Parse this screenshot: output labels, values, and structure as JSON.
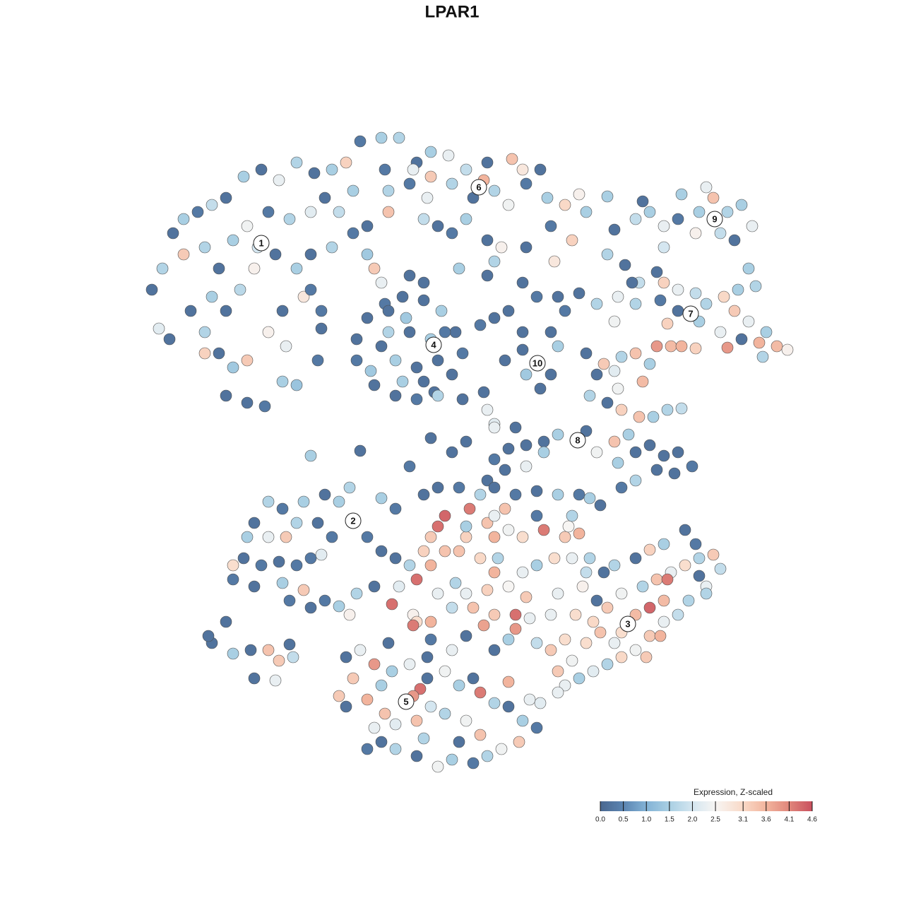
{
  "chart_data": {
    "type": "scatter",
    "title": "LPAR1",
    "x": [
      21.5,
      23,
      24.5,
      26,
      28,
      30,
      32,
      34.5,
      37,
      39.5,
      42,
      44.5,
      47,
      49,
      26,
      29,
      31,
      33,
      35,
      38,
      41,
      44,
      46,
      48,
      30,
      32,
      34,
      36,
      39,
      42,
      44,
      47,
      50,
      52,
      29,
      31,
      33,
      35,
      32,
      35,
      37.5,
      40,
      42,
      38,
      40,
      43,
      24,
      22.5,
      45.5,
      36.5,
      44,
      27,
      29,
      40.5,
      51,
      54,
      56.5,
      59,
      61,
      63.5,
      66,
      69,
      72.5,
      74,
      76.5,
      55,
      58,
      60.5,
      64,
      67,
      70,
      72,
      74.5,
      77.5,
      80,
      82,
      83,
      55,
      52,
      60,
      62,
      66,
      69,
      71,
      74.5,
      78,
      81,
      65,
      69,
      70,
      64,
      58.5,
      61,
      68.5,
      50,
      54.5,
      53,
      54,
      78.5,
      52,
      54.5,
      57,
      60,
      62.5,
      64.5,
      65.5,
      64,
      61.5,
      59,
      56,
      53,
      50.5,
      50.5,
      55,
      58,
      61,
      62,
      59,
      56,
      54,
      57,
      60,
      52.5,
      63,
      60,
      58,
      62,
      55,
      57.5,
      68,
      70,
      72,
      74,
      76,
      74,
      45.5,
      45,
      68.5,
      65.5,
      69,
      70,
      76,
      74,
      78,
      76.5,
      79,
      74.5,
      78,
      80,
      79,
      71.5,
      82,
      87,
      90,
      92,
      94,
      96,
      99,
      101,
      103,
      105,
      106.5,
      104,
      102,
      98.5,
      96.5,
      100,
      91,
      94,
      106,
      107,
      104.5,
      86,
      86,
      88.5,
      90.5,
      93,
      94,
      96,
      98.5,
      100,
      102.5,
      104,
      106,
      108.5,
      110,
      111.5,
      108,
      105,
      102,
      99,
      96,
      93.5,
      90,
      87.5,
      84.5,
      87,
      95,
      93,
      96.5,
      103,
      107.5,
      98.5,
      94.5,
      89.5,
      85.5,
      88,
      90,
      92,
      87,
      84.5,
      83.5,
      86,
      88,
      90.5,
      92.5,
      94.5,
      96.5,
      91,
      87.5,
      83,
      82,
      79,
      77,
      74.5,
      72,
      70,
      69,
      71.5,
      74.5,
      77,
      84.5,
      87,
      89,
      90,
      92,
      94,
      96,
      98,
      95.5,
      93,
      90,
      88,
      87.5,
      83,
      66,
      64,
      61,
      58,
      51,
      44,
      73,
      70,
      50,
      48,
      46,
      43,
      40,
      38,
      36,
      35,
      38,
      40.5,
      42,
      45,
      47,
      49.5,
      52,
      54,
      34.5,
      37,
      39.5,
      42,
      44,
      45.5,
      33,
      36,
      40,
      41,
      43,
      44,
      33,
      46,
      48,
      56,
      54,
      60,
      62,
      65,
      68,
      70,
      73,
      76,
      79,
      82,
      85,
      83.5,
      63,
      62,
      61,
      60,
      58,
      59,
      61,
      63,
      66,
      69,
      72,
      74,
      77,
      80,
      82,
      80.5,
      65,
      68,
      70,
      72,
      74,
      76,
      78.5,
      81,
      83,
      55.5,
      58.5,
      61,
      64,
      67,
      70,
      73,
      75,
      68.5,
      72,
      76,
      79,
      81.5,
      84,
      82.5,
      56,
      59,
      53,
      50.5,
      49.5,
      66,
      64.5,
      70.5,
      69,
      74.5,
      73,
      66,
      61,
      66.5,
      66,
      70,
      76,
      81,
      84.5,
      78,
      58.5,
      71.5,
      70,
      62,
      56.5,
      89,
      86,
      88,
      91,
      93,
      95,
      97,
      99,
      101,
      102,
      100,
      97.5,
      96,
      94,
      92,
      90,
      88,
      86,
      84,
      82,
      80,
      79,
      81,
      83,
      85,
      87,
      90,
      92,
      94.5,
      94,
      87,
      90,
      92,
      94,
      97,
      98.5,
      85.5,
      83.5,
      100,
      99,
      78,
      80,
      93.5,
      91.5,
      88,
      79,
      57.5,
      54,
      52,
      50,
      49,
      51,
      53,
      55.5,
      58,
      60.5,
      63,
      65,
      67,
      68,
      70,
      72,
      74,
      76,
      73.5,
      71,
      69,
      67,
      64,
      62,
      59,
      56,
      54,
      53,
      54.5,
      56,
      59,
      61,
      63,
      66,
      68,
      65,
      60,
      52,
      48,
      49,
      59.5,
      58.5,
      60.5,
      64,
      70,
      75,
      76.5,
      55,
      72,
      30,
      32,
      33,
      35.5,
      36,
      38,
      39.5,
      41,
      41.5,
      39,
      29.5
    ],
    "y": [
      87,
      90,
      95,
      97,
      98,
      99,
      100,
      103,
      104,
      102.5,
      105,
      103.5,
      104,
      105,
      92,
      93,
      90,
      94,
      96,
      98,
      97,
      98,
      100,
      98,
      86,
      84,
      87,
      90,
      92,
      90,
      92,
      93,
      95,
      92,
      81,
      78,
      76,
      77,
      72,
      71,
      70.5,
      74,
      73.5,
      81,
      84,
      86,
      80,
      81.5,
      84,
      93,
      87,
      84,
      78,
      79,
      108,
      108.5,
      108.5,
      105,
      106.5,
      106,
      104,
      105,
      105.5,
      104,
      104,
      101,
      102,
      100,
      102,
      100,
      101,
      99,
      102,
      100,
      99,
      100.5,
      98,
      98,
      96,
      97,
      96,
      97,
      94,
      93,
      93,
      96,
      94,
      90,
      89,
      91,
      95,
      104,
      103,
      102.5,
      101,
      104,
      90,
      88,
      91,
      83,
      85,
      86,
      85.5,
      84,
      81,
      78,
      75,
      72.5,
      71.5,
      72,
      73.5,
      77,
      80,
      81,
      81,
      80,
      77,
      76,
      77,
      79,
      74,
      74,
      75.5,
      81,
      88,
      89,
      72,
      84,
      83,
      82,
      83,
      84,
      88,
      86,
      81,
      81.5,
      77,
      72.5,
      71.5,
      70,
      68,
      76.5,
      78.5,
      75,
      73,
      79,
      75,
      81,
      84,
      86,
      77,
      86.5,
      95.5,
      97,
      98,
      96,
      97,
      98,
      100,
      98,
      99,
      96,
      94,
      95,
      95,
      100.5,
      101.5,
      99.5,
      93,
      90,
      87.5,
      87,
      100.2,
      92,
      90.5,
      88,
      89.5,
      88,
      87,
      86.5,
      85,
      86,
      84,
      82.5,
      81,
      79,
      78.5,
      77.5,
      80,
      81,
      82.5,
      84,
      85.5,
      85,
      86,
      85,
      82.5,
      79,
      79,
      79,
      78.8,
      79.5,
      78.7,
      82.2,
      88,
      76.5,
      77.5,
      78,
      76.5,
      75.5,
      75,
      72,
      71,
      70,
      69,
      69,
      70,
      70.2,
      74,
      73,
      78,
      65.8,
      66.5,
      65.5,
      65,
      64.5,
      63,
      60,
      61.5,
      62,
      64,
      64,
      65.5,
      66.5,
      64,
      65,
      63.5,
      64,
      62,
      61,
      61.5,
      60,
      59,
      62.5,
      67,
      65.5,
      64,
      66,
      62,
      64.2,
      63.5,
      67.5,
      67.5,
      54.3,
      57,
      58,
      57,
      56,
      57,
      54,
      52,
      52,
      52,
      54,
      54,
      52,
      59,
      52,
      50,
      49,
      48,
      48.5,
      48,
      49,
      49.5,
      46,
      45,
      45.5,
      43,
      44.5,
      42,
      48,
      43,
      42.2,
      56,
      57.5,
      58,
      59,
      59,
      58,
      59,
      58,
      58.5,
      58,
      58,
      56.5,
      57.5,
      55,
      53.5,
      52,
      50,
      48,
      46,
      48,
      50,
      52,
      54,
      53,
      52,
      53,
      52,
      52.5,
      53.5,
      50,
      49,
      47,
      45,
      47,
      48,
      49,
      49,
      47,
      42.5,
      41,
      40,
      42,
      42,
      41,
      39,
      40.5,
      39.5,
      37.5,
      37,
      44,
      41,
      40,
      45,
      49,
      40,
      45,
      44,
      41,
      44,
      45.5,
      49,
      44.5,
      43.5,
      41,
      38,
      37.5,
      56,
      53.5,
      52,
      55,
      55,
      43,
      41,
      39.5,
      56,
      55,
      44,
      45,
      39.7,
      42,
      44,
      45,
      46,
      47,
      48,
      49,
      49.5,
      47.5,
      45,
      43,
      41,
      40,
      38,
      36,
      35,
      34,
      33,
      32,
      31,
      33,
      34.5,
      37,
      38.5,
      37,
      41,
      42,
      46,
      43,
      48,
      49,
      50.2,
      51,
      53,
      51,
      47,
      49,
      44,
      46.5,
      36,
      37.5,
      38,
      35,
      38.5,
      30,
      28.7,
      31,
      29,
      32,
      35,
      36,
      34,
      33,
      34,
      32,
      33,
      31,
      32,
      30,
      28.5,
      28,
      26,
      25,
      23,
      22,
      21,
      20,
      20.5,
      19.5,
      21,
      22,
      23,
      25,
      27,
      25.5,
      26,
      28,
      27,
      26,
      24,
      23,
      23.5,
      22,
      29.5,
      28,
      30.5,
      29.5,
      35,
      36,
      36,
      29,
      28.5,
      37,
      31.5,
      37,
      40,
      35.5,
      36,
      32,
      36,
      34.5,
      36.8,
      35,
      31.7,
      38
    ],
    "values": [
      0.2,
      1.6,
      0.2,
      1.5,
      0.3,
      1.8,
      0.2,
      1.5,
      0.2,
      2.3,
      1.6,
      0.2,
      1.5,
      3.2,
      3.3,
      1.6,
      0.2,
      1.5,
      2.4,
      0.3,
      1.6,
      2.2,
      0.2,
      1.8,
      1.5,
      0.2,
      1.7,
      2.6,
      0.2,
      1.5,
      0.2,
      1.6,
      0.3,
      1.4,
      1.6,
      0.2,
      1.4,
      3.3,
      0.2,
      0.2,
      0.3,
      1.5,
      1.3,
      2.6,
      0.2,
      2.8,
      0.2,
      2.2,
      0.3,
      2.0,
      0.3,
      0.2,
      3.2,
      2.3,
      0.3,
      1.5,
      1.6,
      0.2,
      1.5,
      2.3,
      1.8,
      0.2,
      3.4,
      2.8,
      0.2,
      1.6,
      0.3,
      2.3,
      1.6,
      0.2,
      1.6,
      2.4,
      0.3,
      1.5,
      3.1,
      2.6,
      1.5,
      3.4,
      0.2,
      1.8,
      0.2,
      1.5,
      0.2,
      2.6,
      0.2,
      0.3,
      3.2,
      1.5,
      0.2,
      1.6,
      0.3,
      2.3,
      3.3,
      3.6,
      1.5,
      0.3,
      3.3,
      2.3,
      2.8,
      0.2,
      0.3,
      0.2,
      0.2,
      1.5,
      0.2,
      0.3,
      0.2,
      0.2,
      0.3,
      0.2,
      0.2,
      0.3,
      0.2,
      1.6,
      0.2,
      1.5,
      0.2,
      0.2,
      1.5,
      0.2,
      1.5,
      0.2,
      1.4,
      0.3,
      0.2,
      0.2,
      1.6,
      0.2,
      1.4,
      0.3,
      0.2,
      0.2,
      0.2,
      0.3,
      0.2,
      0.2,
      0.3,
      0.2,
      0.2,
      2.3,
      2.2,
      0.3,
      0.2,
      0.2,
      0.2,
      1.5,
      1.4,
      0.2,
      0.3,
      0.2,
      0.2,
      0.2,
      0.2,
      1.8,
      1.5,
      2.3,
      0.3,
      1.5,
      3.4,
      1.6,
      1.5,
      2.3,
      0.2,
      1.8,
      2.6,
      1.5,
      2.3,
      0.2,
      2.0,
      1.5,
      1.6,
      1.5,
      1.5,
      1.6,
      0.2,
      1.8,
      0.2,
      3.2,
      2.3,
      1.8,
      1.6,
      3.1,
      3.3,
      2.3,
      1.5,
      3.5,
      2.6,
      1.6,
      0.2,
      2.3,
      1.5,
      0.2,
      0.3,
      1.6,
      2.3,
      1.6,
      2.4,
      3.5,
      3.9,
      3.6,
      3.9,
      3.6,
      3.2,
      3.2,
      0.2,
      3.3,
      1.6,
      3.4,
      1.5,
      2.2,
      0.2,
      1.6,
      0.2,
      3.2,
      3.4,
      1.5,
      1.6,
      1.8,
      3.5,
      2.4,
      0.2,
      2.3,
      1.5,
      0.2,
      0.2,
      0.2,
      0.3,
      0.2,
      0.2,
      2.3,
      1.5,
      2.4,
      3.4,
      1.5,
      0.2,
      0.2,
      0.2,
      0.2,
      0.3,
      0.2,
      0.2,
      1.6,
      0.3,
      1.5,
      0.2,
      0.2,
      0.2,
      0.2,
      0.3,
      0.2,
      1.5,
      0.2,
      2.3,
      2.3,
      1.5,
      0.2,
      1.5,
      0.3,
      1.6,
      0.2,
      1.5,
      2.3,
      3.3,
      1.6,
      0.2,
      0.3,
      1.6,
      0.3,
      0.2,
      0.2,
      0.3,
      0.2,
      0.3,
      0.3,
      2.2,
      0.3,
      0.2,
      1.5,
      0.3,
      3.3,
      0.2,
      3.0,
      0.3,
      1.5,
      0.3,
      1.5,
      0.2,
      0.2,
      0.3,
      1.6,
      0.2,
      0.3,
      0.2,
      1.5,
      0.3,
      0.2,
      1.5,
      4.4,
      4.3,
      3.3,
      3.2,
      1.6,
      4.3,
      3.6,
      3.4,
      3.2,
      3.4,
      2.4,
      3.0,
      4.2,
      3.3,
      3.6,
      2.5,
      3.4,
      3.1,
      3.6,
      2.5,
      2.3,
      1.5,
      3.0,
      2.3,
      1.8,
      4.3,
      2.6,
      3.6,
      1.8,
      3.4,
      3.3,
      3.9,
      2.3,
      3.8,
      1.5,
      1.8,
      2.3,
      3.0,
      3.1,
      2.6,
      0.2,
      3.0,
      0.2,
      1.6,
      2.6,
      2.3,
      1.6,
      1.6,
      3.2,
      3.3,
      4.3,
      0.2,
      0.3,
      4.2,
      1.5,
      3.6,
      0.3,
      1.6,
      0.2,
      2.3,
      4.2,
      3.4,
      2.3,
      2.3,
      2.2,
      2.3,
      3.3,
      2.4,
      1.6,
      3.4,
      2.3,
      3.0,
      1.6,
      3.3,
      1.8,
      2.3,
      1.6,
      1.8,
      2.3,
      3.3,
      2.4,
      3.1,
      1.6,
      2.2,
      1.5,
      2.3,
      3.3,
      2.4,
      3.0,
      3.4,
      2.3,
      3.5,
      4.4,
      4.2,
      3.5,
      1.6,
      0.2,
      3.2,
      1.5,
      0.2,
      0.3,
      0.2,
      1.6,
      1.6,
      0.2,
      3.3,
      3.0,
      3.6,
      3.3,
      3.0,
      2.3,
      2.4,
      1.5,
      3.6,
      3.3,
      0.2,
      2.3,
      3.9,
      1.5,
      2.3,
      0.2,
      2.4,
      1.5,
      0.2,
      4.2,
      1.6,
      0.2,
      1.5,
      0.3,
      3.3,
      2.4,
      1.6,
      0.3,
      1.5,
      2.4,
      0.2,
      1.6,
      0.2,
      2.3,
      3.4,
      2.2,
      3.4,
      2.0,
      1.6,
      2.4,
      3.4,
      0.2,
      1.6,
      0.3,
      3.3,
      0.2,
      4.3,
      3.9,
      0.2,
      2.3,
      0.2,
      2.3,
      2.2,
      0.2,
      3.6,
      0.2,
      0.2,
      1.5,
      0.2,
      0.2,
      3.4,
      3.3,
      0.2,
      1.8,
      2.3,
      0.2
    ],
    "annotations": [
      {
        "text": "1",
        "x": 37.0,
        "y": 93.6
      },
      {
        "text": "6",
        "x": 67.8,
        "y": 101.5
      },
      {
        "text": "9",
        "x": 101.2,
        "y": 97
      },
      {
        "text": "7",
        "x": 97.8,
        "y": 83.6
      },
      {
        "text": "4",
        "x": 61.4,
        "y": 79.2
      },
      {
        "text": "10",
        "x": 76.1,
        "y": 76.6
      },
      {
        "text": "8",
        "x": 81.8,
        "y": 65.7
      },
      {
        "text": "2",
        "x": 50.0,
        "y": 54.3
      },
      {
        "text": "3",
        "x": 88.9,
        "y": 39.7
      },
      {
        "text": "5",
        "x": 57.5,
        "y": 28.7
      }
    ],
    "colorscale": [
      [
        0,
        "#4a6890"
      ],
      [
        0.5,
        "#5b84b1"
      ],
      [
        1.0,
        "#83b3d6"
      ],
      [
        1.5,
        "#a9cfe3"
      ],
      [
        2.0,
        "#d4e6f0"
      ],
      [
        2.5,
        "#f7f5f3"
      ],
      [
        3.1,
        "#f9d9c7"
      ],
      [
        3.6,
        "#f2b49d"
      ],
      [
        4.1,
        "#e0867b"
      ],
      [
        4.6,
        "#c9505e"
      ]
    ],
    "colorbar": {
      "title": "Expression, Z-scaled",
      "lim": [
        0,
        4.6
      ],
      "ticks": [
        {
          "value": 0,
          "label": "0.0"
        },
        0.5,
        {
          "value": 1,
          "label": "1.0"
        },
        1.5,
        {
          "value": 2,
          "label": "2.0"
        },
        2.5,
        3.1,
        3.6,
        4.1,
        4.6
      ]
    }
  }
}
